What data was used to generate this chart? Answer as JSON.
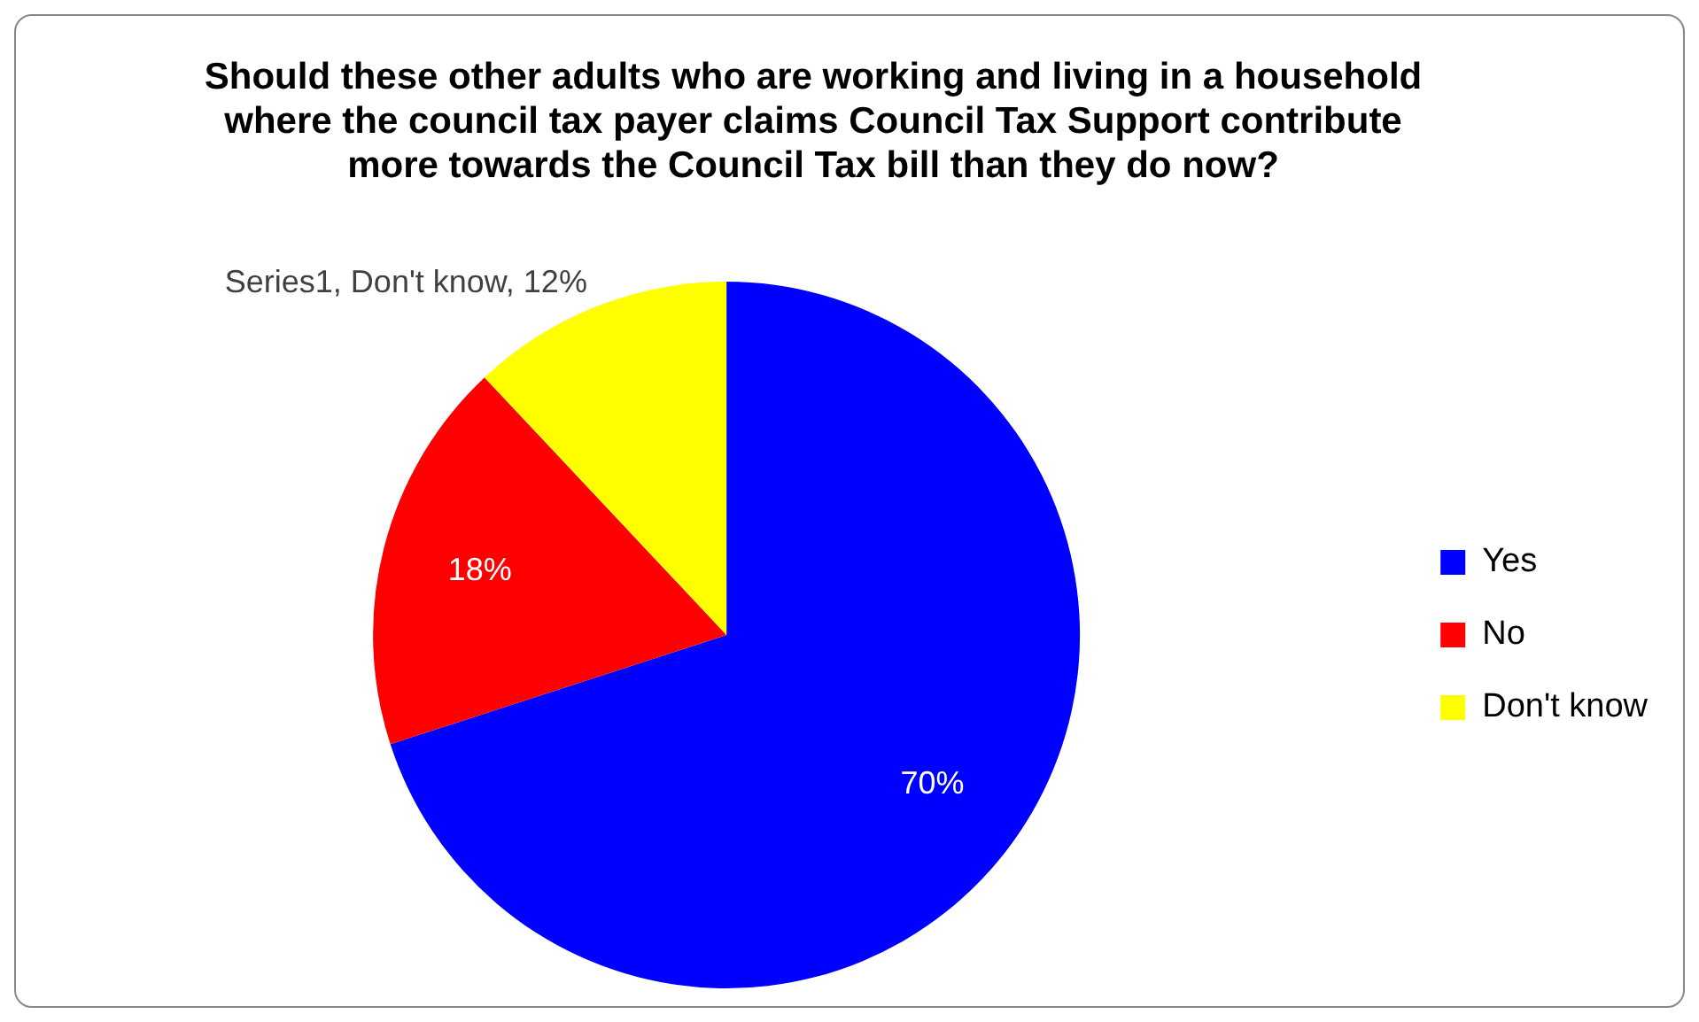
{
  "chart_data": {
    "type": "pie",
    "title": "Should these other adults who are working and living in a household where the council tax payer claims Council Tax Support contribute more towards the Council Tax bill than they do now?",
    "categories": [
      "Yes",
      "No",
      "Don't know"
    ],
    "values": [
      70,
      18,
      12
    ],
    "colors": [
      "#0000ff",
      "#ff0000",
      "#ffff00"
    ],
    "value_labels": [
      "70%",
      "18%",
      "Series1, Don't know, 12%"
    ],
    "legend": "right"
  }
}
